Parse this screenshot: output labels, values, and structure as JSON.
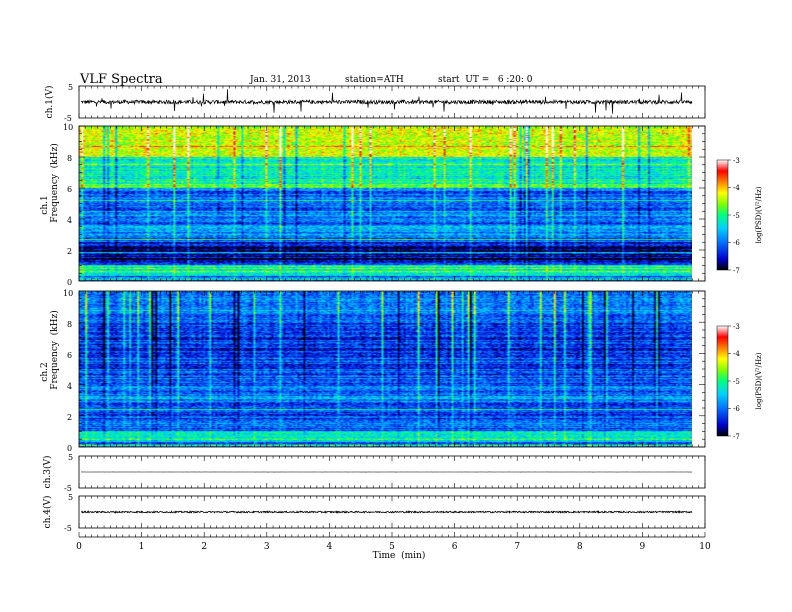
{
  "header": {
    "title": "VLF Spectra",
    "date": "Jan. 31, 2013",
    "station": "station=ATH",
    "start": "start  UT =   6 :20: 0"
  },
  "panels": {
    "ch1_wave": {
      "ylabel": "ch.1(V)",
      "ticks": [
        "5",
        "-5"
      ]
    },
    "spec1": {
      "ylabel_1": "ch.1",
      "ylabel_2": "Frequency  (kHz)",
      "ticks": [
        "10",
        "8",
        "6",
        "4",
        "2",
        "0"
      ]
    },
    "spec2": {
      "ylabel_1": "ch.2",
      "ylabel_2": "Frequency  (kHz)",
      "ticks": [
        "10",
        "8",
        "6",
        "4",
        "2",
        "0"
      ]
    },
    "ch3_wave": {
      "ylabel": "ch.3(V)",
      "ticks": [
        "5",
        "-5"
      ]
    },
    "ch4_wave": {
      "ylabel": "ch.4(V)",
      "ticks": [
        "5",
        "-5"
      ]
    }
  },
  "colorbar": {
    "label": "log(PSD)(V²/Hz)",
    "ticks": [
      "-3",
      "-4",
      "-5",
      "-6",
      "-7"
    ],
    "colors": [
      "#000000",
      "#0000cc",
      "#0070ff",
      "#00d0ff",
      "#00ff80",
      "#80ff00",
      "#ffff00",
      "#ff8000",
      "#ff0000",
      "#ffffff"
    ]
  },
  "xaxis": {
    "label": "Time  (min)",
    "ticks": [
      "0",
      "1",
      "2",
      "3",
      "4",
      "5",
      "6",
      "7",
      "8",
      "9",
      "10"
    ]
  },
  "chart_data": {
    "type": "heatmap",
    "title": "VLF Spectra",
    "xlabel": "Time  (min)",
    "xlim": [
      0,
      10
    ],
    "data_end_min": 9.8,
    "spectrograms": [
      {
        "name": "ch.1",
        "ylabel": "Frequency  (kHz)",
        "ylim": [
          0,
          10
        ],
        "zlabel": "log(PSD)(V²/Hz)",
        "zlim": [
          -7,
          -3
        ],
        "freq_bands": [
          {
            "f": [
              8.0,
              10.0
            ],
            "log_psd": -4.3
          },
          {
            "f": [
              6.0,
              8.0
            ],
            "log_psd": -5.2
          },
          {
            "f": [
              4.0,
              6.0
            ],
            "log_psd": -6.0
          },
          {
            "f": [
              2.5,
              4.0
            ],
            "log_psd": -6.1
          },
          {
            "f": [
              1.0,
              2.5
            ],
            "log_psd": -6.6
          },
          {
            "f": [
              0.3,
              1.0
            ],
            "log_psd": -5.0
          },
          {
            "f": [
              0.0,
              0.3
            ],
            "log_psd": -6.0
          }
        ]
      },
      {
        "name": "ch.2",
        "ylabel": "Frequency  (kHz)",
        "ylim": [
          0,
          10
        ],
        "zlabel": "log(PSD)(V²/Hz)",
        "zlim": [
          -7,
          -3
        ],
        "freq_bands": [
          {
            "f": [
              8.0,
              10.0
            ],
            "log_psd": -6.0
          },
          {
            "f": [
              6.0,
              8.0
            ],
            "log_psd": -6.3
          },
          {
            "f": [
              4.0,
              6.0
            ],
            "log_psd": -6.2
          },
          {
            "f": [
              2.5,
              4.0
            ],
            "log_psd": -6.0
          },
          {
            "f": [
              1.0,
              2.5
            ],
            "log_psd": -6.2
          },
          {
            "f": [
              0.3,
              1.0
            ],
            "log_psd": -5.2
          },
          {
            "f": [
              0.0,
              0.3
            ],
            "log_psd": -6.0
          }
        ]
      }
    ],
    "waveforms": [
      {
        "name": "ch.1(V)",
        "ylim": [
          -5,
          5
        ],
        "level": 0.0,
        "amplitude": 1.5
      },
      {
        "name": "ch.3(V)",
        "ylim": [
          -5,
          5
        ],
        "level": 0.0,
        "amplitude": 0.05
      },
      {
        "name": "ch.4(V)",
        "ylim": [
          -5,
          5
        ],
        "level": 0.0,
        "amplitude": 0.6
      }
    ]
  }
}
